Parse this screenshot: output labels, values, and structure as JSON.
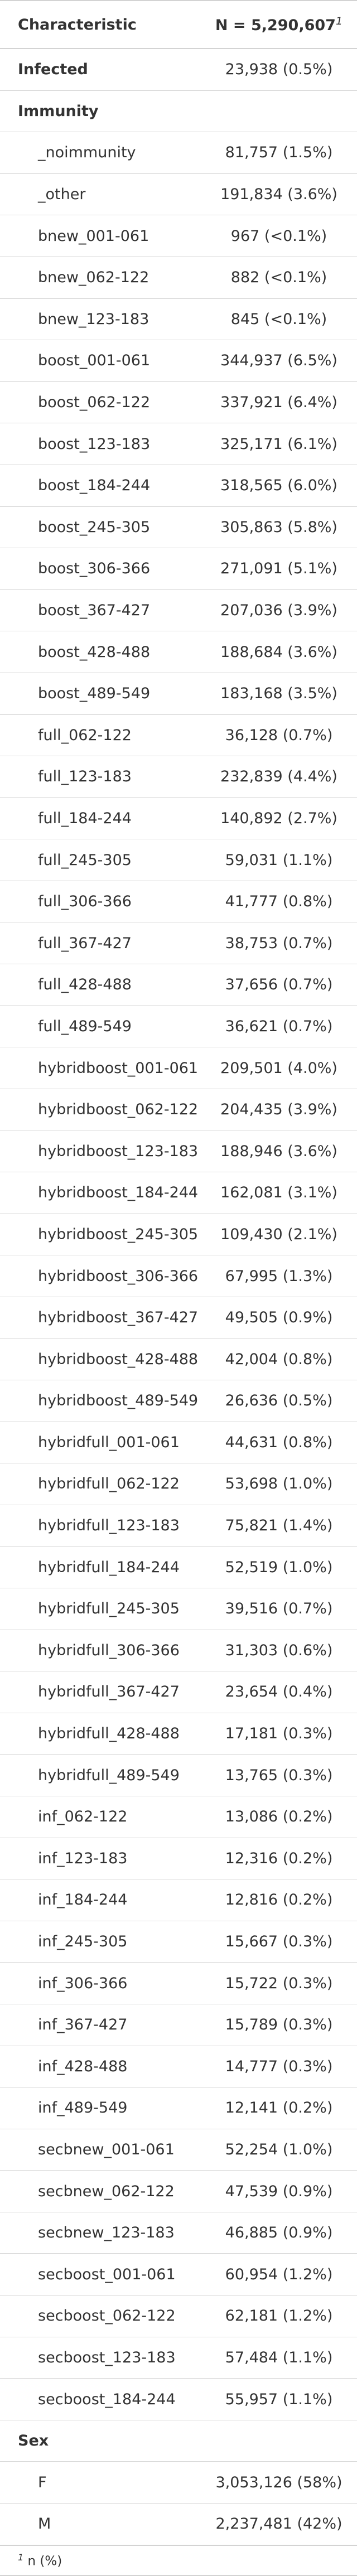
{
  "table": {
    "header": {
      "characteristic": "Characteristic",
      "value": "N = 5,290,607",
      "footnote_mark": "1"
    },
    "rows": [
      {
        "label": "Infected",
        "value": "23,938 (0.5%)",
        "level": 0
      },
      {
        "label": "Immunity",
        "value": "",
        "level": 0
      },
      {
        "label": "_noimmunity",
        "value": "81,757 (1.5%)",
        "level": 1
      },
      {
        "label": "_other",
        "value": "191,834 (3.6%)",
        "level": 1
      },
      {
        "label": "bnew_001-061",
        "value": "967 (<0.1%)",
        "level": 1
      },
      {
        "label": "bnew_062-122",
        "value": "882 (<0.1%)",
        "level": 1
      },
      {
        "label": "bnew_123-183",
        "value": "845 (<0.1%)",
        "level": 1
      },
      {
        "label": "boost_001-061",
        "value": "344,937 (6.5%)",
        "level": 1
      },
      {
        "label": "boost_062-122",
        "value": "337,921 (6.4%)",
        "level": 1
      },
      {
        "label": "boost_123-183",
        "value": "325,171 (6.1%)",
        "level": 1
      },
      {
        "label": "boost_184-244",
        "value": "318,565 (6.0%)",
        "level": 1
      },
      {
        "label": "boost_245-305",
        "value": "305,863 (5.8%)",
        "level": 1
      },
      {
        "label": "boost_306-366",
        "value": "271,091 (5.1%)",
        "level": 1
      },
      {
        "label": "boost_367-427",
        "value": "207,036 (3.9%)",
        "level": 1
      },
      {
        "label": "boost_428-488",
        "value": "188,684 (3.6%)",
        "level": 1
      },
      {
        "label": "boost_489-549",
        "value": "183,168 (3.5%)",
        "level": 1
      },
      {
        "label": "full_062-122",
        "value": "36,128 (0.7%)",
        "level": 1
      },
      {
        "label": "full_123-183",
        "value": "232,839 (4.4%)",
        "level": 1
      },
      {
        "label": "full_184-244",
        "value": "140,892 (2.7%)",
        "level": 1
      },
      {
        "label": "full_245-305",
        "value": "59,031 (1.1%)",
        "level": 1
      },
      {
        "label": "full_306-366",
        "value": "41,777 (0.8%)",
        "level": 1
      },
      {
        "label": "full_367-427",
        "value": "38,753 (0.7%)",
        "level": 1
      },
      {
        "label": "full_428-488",
        "value": "37,656 (0.7%)",
        "level": 1
      },
      {
        "label": "full_489-549",
        "value": "36,621 (0.7%)",
        "level": 1
      },
      {
        "label": "hybridboost_001-061",
        "value": "209,501 (4.0%)",
        "level": 1
      },
      {
        "label": "hybridboost_062-122",
        "value": "204,435 (3.9%)",
        "level": 1
      },
      {
        "label": "hybridboost_123-183",
        "value": "188,946 (3.6%)",
        "level": 1
      },
      {
        "label": "hybridboost_184-244",
        "value": "162,081 (3.1%)",
        "level": 1
      },
      {
        "label": "hybridboost_245-305",
        "value": "109,430 (2.1%)",
        "level": 1
      },
      {
        "label": "hybridboost_306-366",
        "value": "67,995 (1.3%)",
        "level": 1
      },
      {
        "label": "hybridboost_367-427",
        "value": "49,505 (0.9%)",
        "level": 1
      },
      {
        "label": "hybridboost_428-488",
        "value": "42,004 (0.8%)",
        "level": 1
      },
      {
        "label": "hybridboost_489-549",
        "value": "26,636 (0.5%)",
        "level": 1
      },
      {
        "label": "hybridfull_001-061",
        "value": "44,631 (0.8%)",
        "level": 1
      },
      {
        "label": "hybridfull_062-122",
        "value": "53,698 (1.0%)",
        "level": 1
      },
      {
        "label": "hybridfull_123-183",
        "value": "75,821 (1.4%)",
        "level": 1
      },
      {
        "label": "hybridfull_184-244",
        "value": "52,519 (1.0%)",
        "level": 1
      },
      {
        "label": "hybridfull_245-305",
        "value": "39,516 (0.7%)",
        "level": 1
      },
      {
        "label": "hybridfull_306-366",
        "value": "31,303 (0.6%)",
        "level": 1
      },
      {
        "label": "hybridfull_367-427",
        "value": "23,654 (0.4%)",
        "level": 1
      },
      {
        "label": "hybridfull_428-488",
        "value": "17,181 (0.3%)",
        "level": 1
      },
      {
        "label": "hybridfull_489-549",
        "value": "13,765 (0.3%)",
        "level": 1
      },
      {
        "label": "inf_062-122",
        "value": "13,086 (0.2%)",
        "level": 1
      },
      {
        "label": "inf_123-183",
        "value": "12,316 (0.2%)",
        "level": 1
      },
      {
        "label": "inf_184-244",
        "value": "12,816 (0.2%)",
        "level": 1
      },
      {
        "label": "inf_245-305",
        "value": "15,667 (0.3%)",
        "level": 1
      },
      {
        "label": "inf_306-366",
        "value": "15,722 (0.3%)",
        "level": 1
      },
      {
        "label": "inf_367-427",
        "value": "15,789 (0.3%)",
        "level": 1
      },
      {
        "label": "inf_428-488",
        "value": "14,777 (0.3%)",
        "level": 1
      },
      {
        "label": "inf_489-549",
        "value": "12,141 (0.2%)",
        "level": 1
      },
      {
        "label": "secbnew_001-061",
        "value": "52,254 (1.0%)",
        "level": 1
      },
      {
        "label": "secbnew_062-122",
        "value": "47,539 (0.9%)",
        "level": 1
      },
      {
        "label": "secbnew_123-183",
        "value": "46,885 (0.9%)",
        "level": 1
      },
      {
        "label": "secboost_001-061",
        "value": "60,954 (1.2%)",
        "level": 1
      },
      {
        "label": "secboost_062-122",
        "value": "62,181 (1.2%)",
        "level": 1
      },
      {
        "label": "secboost_123-183",
        "value": "57,484 (1.1%)",
        "level": 1
      },
      {
        "label": "secboost_184-244",
        "value": "55,957 (1.1%)",
        "level": 1
      },
      {
        "label": "Sex",
        "value": "",
        "level": 0
      },
      {
        "label": "F",
        "value": "3,053,126 (58%)",
        "level": 1
      },
      {
        "label": "M",
        "value": "2,237,481 (42%)",
        "level": 1
      }
    ],
    "footnote": {
      "mark": "1",
      "text": "n (%)"
    }
  }
}
